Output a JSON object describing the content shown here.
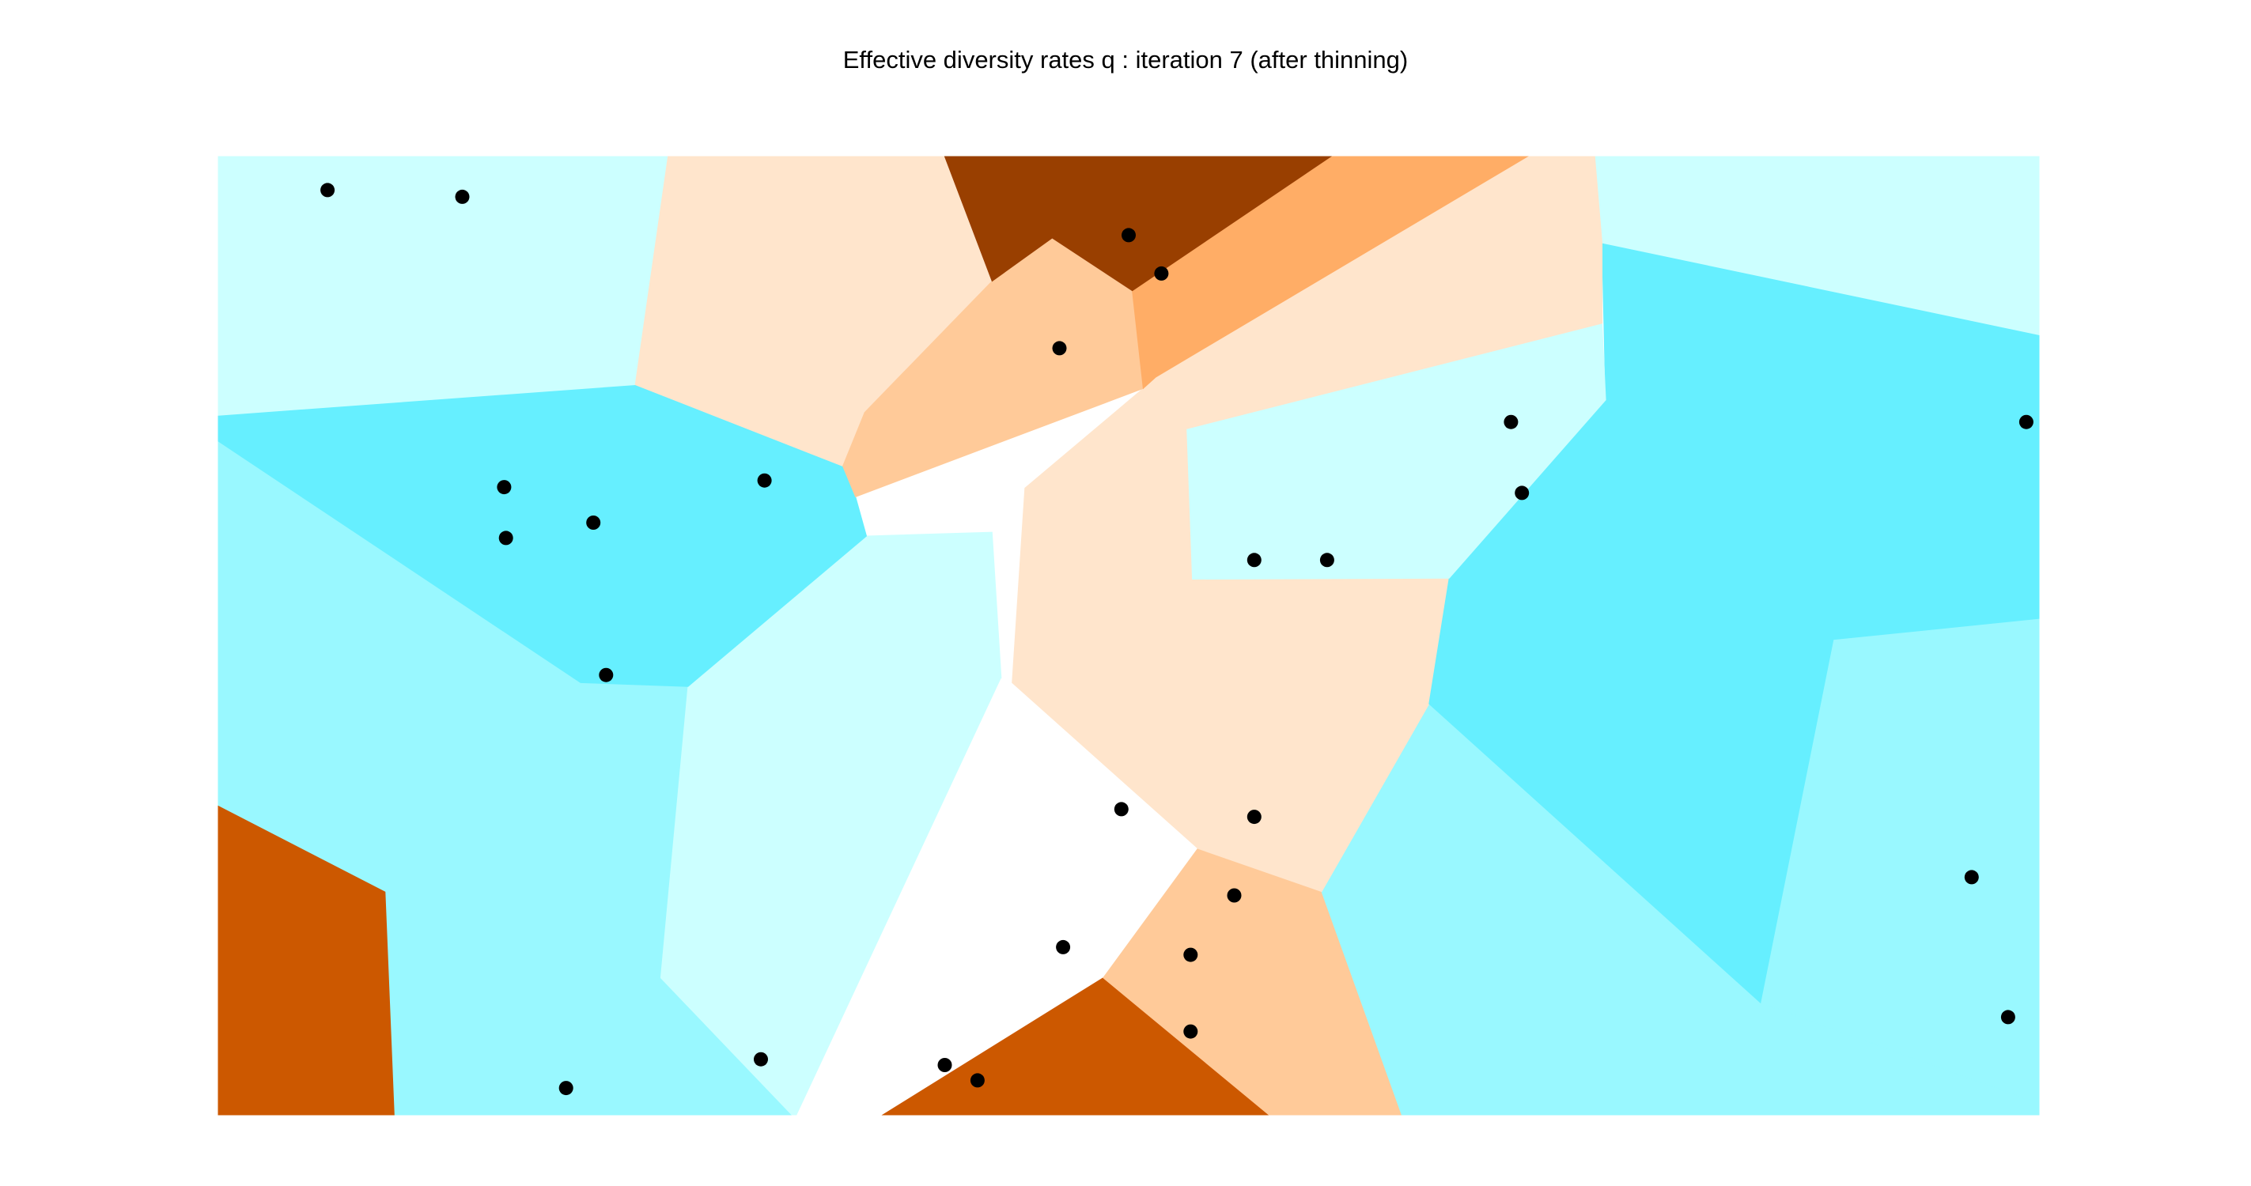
{
  "chart_data": {
    "type": "voronoi",
    "title": "Effective diversity rates q : iteration 7 (after thinning)",
    "xlabel": "",
    "ylabel": "",
    "grid": false,
    "legend": "none",
    "palette": {
      "dark_brown": "#993F00",
      "burnt_orange": "#CC5800",
      "light_orange": "#FFAD66",
      "peach": "#FFCA99",
      "pale_peach": "#FFE5CC",
      "neutral": "#FFFFFF",
      "pale_cyan": "#CCFFFF",
      "light_cyan": "#99F8FF",
      "cyan": "#66EFFF"
    },
    "cells": [
      {
        "color": "burnt_orange",
        "polygon": [
          [
            0,
            0
          ],
          [
            0.097,
            0
          ],
          [
            0.092,
            0.233
          ],
          [
            0,
            0.323
          ]
        ]
      },
      {
        "color": "light_cyan",
        "polygon": [
          [
            0.097,
            0
          ],
          [
            0.315,
            0
          ],
          [
            0.243,
            0.143
          ],
          [
            0.258,
            0.447
          ],
          [
            0.199,
            0.451
          ],
          [
            0,
            0.703
          ],
          [
            0,
            0.323
          ],
          [
            0.092,
            0.233
          ]
        ]
      },
      {
        "color": "pale_cyan",
        "polygon": [
          [
            0.315,
            0
          ],
          [
            0.318,
            0
          ],
          [
            0.43,
            0.455
          ],
          [
            0.425,
            0.608
          ],
          [
            0.356,
            0.604
          ],
          [
            0.258,
            0.447
          ],
          [
            0.243,
            0.143
          ]
        ]
      },
      {
        "color": "neutral",
        "polygon": [
          [
            0.318,
            0
          ],
          [
            0.365,
            0
          ],
          [
            0.486,
            0.143
          ],
          [
            0.538,
            0.278
          ],
          [
            0.436,
            0.451
          ],
          [
            0.43,
            0.455
          ]
        ]
      },
      {
        "color": "burnt_orange",
        "polygon": [
          [
            0.365,
            0
          ],
          [
            0.577,
            0
          ],
          [
            0.486,
            0.143
          ]
        ]
      },
      {
        "color": "peach",
        "polygon": [
          [
            0.577,
            0
          ],
          [
            0.65,
            0
          ],
          [
            0.606,
            0.233
          ],
          [
            0.538,
            0.278
          ],
          [
            0.486,
            0.143
          ]
        ]
      },
      {
        "color": "light_cyan",
        "polygon": [
          [
            0.65,
            0
          ],
          [
            1,
            0
          ],
          [
            1,
            0.012
          ],
          [
            0.847,
            0.117
          ],
          [
            0.665,
            0.429
          ],
          [
            0.606,
            0.233
          ]
        ]
      },
      {
        "color": "light_cyan",
        "polygon": [
          [
            0.847,
            0.117
          ],
          [
            1,
            0.012
          ],
          [
            1,
            0.518
          ],
          [
            0.887,
            0.496
          ]
        ]
      },
      {
        "color": "pale_peach",
        "polygon": [
          [
            0.538,
            0.278
          ],
          [
            0.606,
            0.233
          ],
          [
            0.665,
            0.429
          ],
          [
            0.676,
            0.56
          ],
          [
            0.535,
            0.559
          ],
          [
            0.532,
            0.716
          ],
          [
            0.515,
            0.77
          ],
          [
            0.508,
            0.758
          ],
          [
            0.443,
            0.654
          ],
          [
            0.436,
            0.451
          ]
        ]
      },
      {
        "color": "cyan",
        "polygon": [
          [
            0.665,
            0.429
          ],
          [
            0.847,
            0.117
          ],
          [
            0.887,
            0.496
          ],
          [
            1,
            0.518
          ],
          [
            1,
            0.814
          ],
          [
            0.76,
            0.91
          ],
          [
            0.762,
            0.746
          ],
          [
            0.676,
            0.56
          ]
        ]
      },
      {
        "color": "pale_cyan",
        "polygon": [
          [
            0.535,
            0.559
          ],
          [
            0.676,
            0.56
          ],
          [
            0.762,
            0.746
          ],
          [
            0.76,
            0.826
          ],
          [
            0.532,
            0.716
          ]
        ]
      },
      {
        "color": "pale_cyan",
        "polygon": [
          [
            0.76,
            0.91
          ],
          [
            1,
            0.814
          ],
          [
            1,
            1
          ],
          [
            0.756,
            1
          ]
        ]
      },
      {
        "color": "cyan",
        "polygon": [
          [
            0,
            0.703
          ],
          [
            0.199,
            0.451
          ],
          [
            0.258,
            0.447
          ],
          [
            0.356,
            0.604
          ],
          [
            0.35,
            0.645
          ],
          [
            0.343,
            0.677
          ],
          [
            0.229,
            0.762
          ],
          [
            0,
            0.73
          ]
        ]
      },
      {
        "color": "pale_cyan",
        "polygon": [
          [
            0,
            0.73
          ],
          [
            0.229,
            0.762
          ],
          [
            0.247,
            1
          ],
          [
            0,
            1
          ]
        ]
      },
      {
        "color": "pale_peach",
        "polygon": [
          [
            0.229,
            0.762
          ],
          [
            0.343,
            0.677
          ],
          [
            0.355,
            0.733
          ],
          [
            0.425,
            0.87
          ],
          [
            0.399,
            1
          ],
          [
            0.247,
            1
          ]
        ]
      },
      {
        "color": "peach",
        "polygon": [
          [
            0.343,
            0.677
          ],
          [
            0.35,
            0.645
          ],
          [
            0.508,
            0.758
          ],
          [
            0.502,
            0.86
          ],
          [
            0.458,
            0.915
          ],
          [
            0.425,
            0.87
          ],
          [
            0.355,
            0.733
          ]
        ]
      },
      {
        "color": "pale_peach",
        "polygon": [
          [
            0.515,
            0.77
          ],
          [
            0.532,
            0.716
          ],
          [
            0.76,
            0.826
          ],
          [
            0.76,
            0.91
          ],
          [
            0.756,
            1
          ],
          [
            0.719,
            1
          ]
        ]
      },
      {
        "color": "light_orange",
        "polygon": [
          [
            0.508,
            0.758
          ],
          [
            0.515,
            0.77
          ],
          [
            0.719,
            1
          ],
          [
            0.611,
            1
          ],
          [
            0.502,
            0.86
          ]
        ]
      },
      {
        "color": "dark_brown",
        "polygon": [
          [
            0.425,
            0.87
          ],
          [
            0.458,
            0.915
          ],
          [
            0.502,
            0.86
          ],
          [
            0.611,
            1
          ],
          [
            0.399,
            1
          ]
        ]
      }
    ],
    "points": [
      [
        0.06,
        0.965
      ],
      [
        0.134,
        0.958
      ],
      [
        0.5,
        0.918
      ],
      [
        0.518,
        0.878
      ],
      [
        0.462,
        0.8
      ],
      [
        0.157,
        0.655
      ],
      [
        0.3,
        0.662
      ],
      [
        0.71,
        0.723
      ],
      [
        0.206,
        0.618
      ],
      [
        0.158,
        0.602
      ],
      [
        0.569,
        0.579
      ],
      [
        0.993,
        0.723
      ],
      [
        0.716,
        0.649
      ],
      [
        0.609,
        0.579
      ],
      [
        0.496,
        0.319
      ],
      [
        0.213,
        0.459
      ],
      [
        0.569,
        0.311
      ],
      [
        0.558,
        0.229
      ],
      [
        0.464,
        0.175
      ],
      [
        0.534,
        0.167
      ],
      [
        0.963,
        0.248
      ],
      [
        0.983,
        0.102
      ],
      [
        0.191,
        0.028
      ],
      [
        0.298,
        0.058
      ],
      [
        0.399,
        0.052
      ],
      [
        0.417,
        0.036
      ],
      [
        0.534,
        0.087
      ]
    ]
  }
}
